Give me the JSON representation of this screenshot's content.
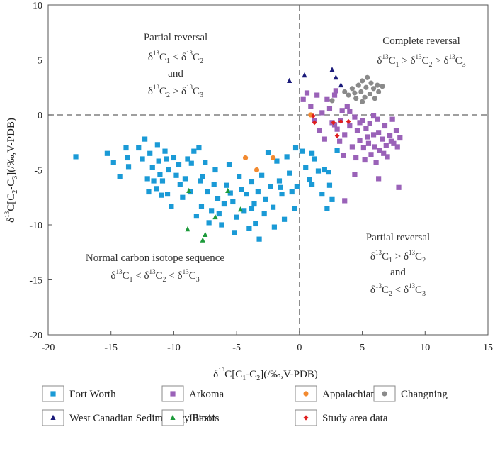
{
  "chart_data": {
    "type": "scatter",
    "xlabel": {
      "pre": "δ",
      "sup": "13",
      "mid": "C[C",
      "sub1": "1",
      "dash": "-C",
      "sub2": "2",
      "post": "](/‰,V-PDB)"
    },
    "ylabel": {
      "pre": "δ",
      "sup": "13",
      "mid": "C[C",
      "sub1": "2",
      "dash": "-C",
      "sub2": "3",
      "post": "](/‰,V-PDB)"
    },
    "xlim": [
      -20,
      15
    ],
    "ylim": [
      -20,
      10
    ],
    "x_ticks": [
      -20,
      -15,
      -10,
      -5,
      0,
      5,
      10,
      15
    ],
    "y_ticks": [
      -20,
      -15,
      -10,
      -5,
      0,
      5,
      10
    ],
    "reference_lines": {
      "x": 0,
      "y": 0,
      "style": "dashed"
    },
    "annotations": [
      {
        "id": "partial-reversal-left",
        "lines": [
          "Partial reversal",
          "δ13C1 < δ13C2",
          "and",
          "δ13C2 > δ13C3"
        ],
        "position": "upper-left"
      },
      {
        "id": "complete-reversal",
        "lines": [
          "Complete reversal",
          "δ13C1 > δ13C2 > δ13C3"
        ],
        "position": "upper-right"
      },
      {
        "id": "partial-reversal-right",
        "lines": [
          "Partial reversal",
          "δ13C1 > δ13C2",
          "and",
          "δ13C2 < δ13C3"
        ],
        "position": "lower-right"
      },
      {
        "id": "normal-sequence",
        "lines": [
          "Normal carbon isotope sequence",
          "δ13C1 < δ13C2 < δ13C3"
        ],
        "position": "lower-left"
      }
    ],
    "series": [
      {
        "name": "Fort Worth",
        "marker": "square",
        "color": "#1a9ad6",
        "points": [
          [
            -17.8,
            -3.8
          ],
          [
            -15.3,
            -3.5
          ],
          [
            -14.8,
            -4.3
          ],
          [
            -14.3,
            -5.6
          ],
          [
            -13.8,
            -3.0
          ],
          [
            -13.7,
            -3.9
          ],
          [
            -13.6,
            -4.7
          ],
          [
            -12.8,
            -3.0
          ],
          [
            -12.5,
            -4.0
          ],
          [
            -12.3,
            -2.2
          ],
          [
            -12.1,
            -5.8
          ],
          [
            -12.0,
            -7.0
          ],
          [
            -11.9,
            -3.5
          ],
          [
            -11.7,
            -4.8
          ],
          [
            -11.6,
            -6.0
          ],
          [
            -11.4,
            -6.7
          ],
          [
            -11.3,
            -2.7
          ],
          [
            -11.2,
            -4.2
          ],
          [
            -11.1,
            -5.4
          ],
          [
            -11.0,
            -7.3
          ],
          [
            -10.9,
            -6.0
          ],
          [
            -10.7,
            -3.3
          ],
          [
            -10.6,
            -4.0
          ],
          [
            -10.5,
            -7.2
          ],
          [
            -10.4,
            -5.0
          ],
          [
            -10.2,
            -8.3
          ],
          [
            -10.0,
            -3.9
          ],
          [
            -9.8,
            -5.5
          ],
          [
            -9.6,
            -4.5
          ],
          [
            -9.5,
            -6.3
          ],
          [
            -9.3,
            -7.5
          ],
          [
            -9.1,
            -5.8
          ],
          [
            -8.9,
            -4.0
          ],
          [
            -8.7,
            -7.0
          ],
          [
            -8.6,
            -4.4
          ],
          [
            -8.4,
            -3.3
          ],
          [
            -8.2,
            -9.2
          ],
          [
            -8.0,
            -3.0
          ],
          [
            -7.9,
            -6.0
          ],
          [
            -7.8,
            -8.3
          ],
          [
            -7.7,
            -5.6
          ],
          [
            -7.5,
            -4.3
          ],
          [
            -7.3,
            -7.0
          ],
          [
            -7.2,
            -9.8
          ],
          [
            -7.0,
            -8.7
          ],
          [
            -6.8,
            -6.3
          ],
          [
            -6.7,
            -5.0
          ],
          [
            -6.5,
            -7.6
          ],
          [
            -6.4,
            -9.0
          ],
          [
            -6.2,
            -10.0
          ],
          [
            -6.0,
            -8.1
          ],
          [
            -5.8,
            -6.4
          ],
          [
            -5.6,
            -4.5
          ],
          [
            -5.3,
            -7.9
          ],
          [
            -5.2,
            -10.7
          ],
          [
            -5.0,
            -9.3
          ],
          [
            -4.8,
            -5.6
          ],
          [
            -4.6,
            -6.8
          ],
          [
            -4.4,
            -8.7
          ],
          [
            -4.2,
            -7.2
          ],
          [
            -4.0,
            -10.3
          ],
          [
            -3.8,
            -6.1
          ],
          [
            -3.6,
            -8.1
          ],
          [
            -3.5,
            -9.9
          ],
          [
            -3.3,
            -7.0
          ],
          [
            -3.2,
            -11.3
          ],
          [
            -3.0,
            -5.5
          ],
          [
            -2.8,
            -9.0
          ],
          [
            -2.7,
            -7.7
          ],
          [
            -2.5,
            -3.4
          ],
          [
            -2.3,
            -6.5
          ],
          [
            -2.1,
            -8.4
          ],
          [
            -2.0,
            -10.2
          ],
          [
            -1.8,
            -4.2
          ],
          [
            -1.6,
            -6.0
          ],
          [
            -1.4,
            -7.2
          ],
          [
            -1.2,
            -9.5
          ],
          [
            -1.0,
            -3.8
          ],
          [
            -0.8,
            -5.3
          ],
          [
            -0.6,
            -7.0
          ],
          [
            -0.4,
            -8.5
          ],
          [
            -0.3,
            -3.0
          ],
          [
            -0.2,
            -6.5
          ],
          [
            0.2,
            -3.3
          ],
          [
            0.5,
            -4.8
          ],
          [
            0.8,
            -5.9
          ],
          [
            1.0,
            -3.5
          ],
          [
            1.2,
            -4.0
          ],
          [
            1.5,
            -5.1
          ],
          [
            1.8,
            -7.2
          ],
          [
            2.0,
            -5.0
          ],
          [
            2.2,
            -8.5
          ],
          [
            2.4,
            -6.4
          ],
          [
            2.6,
            -7.7
          ],
          [
            1.0,
            -6.3
          ],
          [
            2.3,
            -5.2
          ],
          [
            3.0,
            -3.2
          ],
          [
            -3.8,
            -8.5
          ],
          [
            -1.5,
            -6.6
          ],
          [
            -5.5,
            -7.1
          ]
        ]
      },
      {
        "name": "Arkoma",
        "marker": "square",
        "color": "#9a62b8",
        "points": [
          [
            0.3,
            1.4
          ],
          [
            0.6,
            2.0
          ],
          [
            0.9,
            0.8
          ],
          [
            1.2,
            -0.5
          ],
          [
            1.4,
            1.8
          ],
          [
            1.6,
            -1.4
          ],
          [
            1.8,
            0.2
          ],
          [
            2.0,
            -2.2
          ],
          [
            2.2,
            1.4
          ],
          [
            2.4,
            0.6
          ],
          [
            2.6,
            -0.7
          ],
          [
            2.8,
            1.8
          ],
          [
            3.0,
            -1.3
          ],
          [
            3.2,
            -2.4
          ],
          [
            3.4,
            0.4
          ],
          [
            3.5,
            -3.7
          ],
          [
            3.6,
            -1.8
          ],
          [
            3.8,
            0.8
          ],
          [
            4.0,
            -1.0
          ],
          [
            4.2,
            -2.9
          ],
          [
            4.4,
            -0.2
          ],
          [
            4.5,
            -3.9
          ],
          [
            4.6,
            -1.4
          ],
          [
            4.8,
            -2.3
          ],
          [
            5.0,
            -0.5
          ],
          [
            5.1,
            -3.0
          ],
          [
            5.2,
            -4.1
          ],
          [
            5.3,
            -1.2
          ],
          [
            5.5,
            -2.6
          ],
          [
            5.6,
            -0.8
          ],
          [
            5.7,
            -3.6
          ],
          [
            5.9,
            -1.8
          ],
          [
            6.0,
            -2.9
          ],
          [
            6.1,
            -4.3
          ],
          [
            6.2,
            -0.4
          ],
          [
            6.3,
            -1.6
          ],
          [
            6.4,
            -3.2
          ],
          [
            6.6,
            -2.2
          ],
          [
            6.8,
            -1.0
          ],
          [
            6.9,
            -2.8
          ],
          [
            7.0,
            -3.8
          ],
          [
            7.2,
            -1.9
          ],
          [
            7.4,
            -0.4
          ],
          [
            7.5,
            -2.6
          ],
          [
            7.7,
            -1.4
          ],
          [
            7.8,
            -2.9
          ],
          [
            7.9,
            -6.6
          ],
          [
            6.3,
            -5.8
          ],
          [
            4.4,
            -5.4
          ],
          [
            3.6,
            -7.8
          ],
          [
            4.8,
            -0.7
          ],
          [
            5.9,
            -0.1
          ],
          [
            2.8,
            -0.9
          ],
          [
            4.0,
            0.3
          ],
          [
            3.3,
            -0.5
          ],
          [
            5.4,
            -2.0
          ],
          [
            6.7,
            -3.5
          ],
          [
            7.3,
            -2.4
          ],
          [
            8.0,
            -2.1
          ],
          [
            2.9,
            2.2
          ]
        ]
      },
      {
        "name": "Appalachian",
        "marker": "circle",
        "color": "#f28a30",
        "points": [
          [
            -4.3,
            -3.9
          ],
          [
            -3.4,
            -5.0
          ],
          [
            -2.1,
            -3.9
          ],
          [
            0.9,
            0.0
          ]
        ]
      },
      {
        "name": "Changning",
        "marker": "circle",
        "color": "#8a8a8a",
        "points": [
          [
            2.6,
            1.3
          ],
          [
            3.6,
            2.1
          ],
          [
            3.9,
            1.8
          ],
          [
            4.2,
            2.4
          ],
          [
            4.5,
            1.5
          ],
          [
            4.7,
            2.7
          ],
          [
            4.9,
            2.1
          ],
          [
            5.0,
            3.1
          ],
          [
            5.2,
            1.6
          ],
          [
            5.3,
            2.5
          ],
          [
            5.4,
            3.4
          ],
          [
            5.6,
            1.9
          ],
          [
            5.7,
            2.9
          ],
          [
            5.9,
            2.4
          ],
          [
            6.0,
            1.5
          ],
          [
            6.2,
            2.7
          ],
          [
            6.3,
            2.1
          ],
          [
            6.6,
            2.6
          ],
          [
            5.0,
            1.2
          ],
          [
            4.4,
            2.0
          ]
        ]
      },
      {
        "name": "West Canadian Sedimentary Basin",
        "marker": "triangle",
        "color": "#1a1a7a",
        "points": [
          [
            -0.8,
            3.1
          ],
          [
            0.4,
            3.6
          ],
          [
            2.6,
            4.1
          ],
          [
            2.9,
            3.4
          ],
          [
            3.3,
            2.7
          ]
        ]
      },
      {
        "name": "Illinois",
        "marker": "triangle",
        "color": "#1c9a3a",
        "points": [
          [
            -8.8,
            -6.9
          ],
          [
            -8.9,
            -10.4
          ],
          [
            -7.5,
            -10.9
          ],
          [
            -7.7,
            -11.4
          ],
          [
            -6.7,
            -9.3
          ],
          [
            -5.7,
            -6.9
          ],
          [
            -4.7,
            -8.6
          ]
        ]
      },
      {
        "name": "Study area data",
        "marker": "diamond",
        "color": "#e01e1e",
        "points": [
          [
            1.1,
            -0.1
          ],
          [
            1.2,
            -0.7
          ],
          [
            2.7,
            -0.7
          ],
          [
            3.0,
            -1.9
          ],
          [
            3.3,
            -0.6
          ],
          [
            3.9,
            -0.6
          ]
        ]
      }
    ]
  }
}
